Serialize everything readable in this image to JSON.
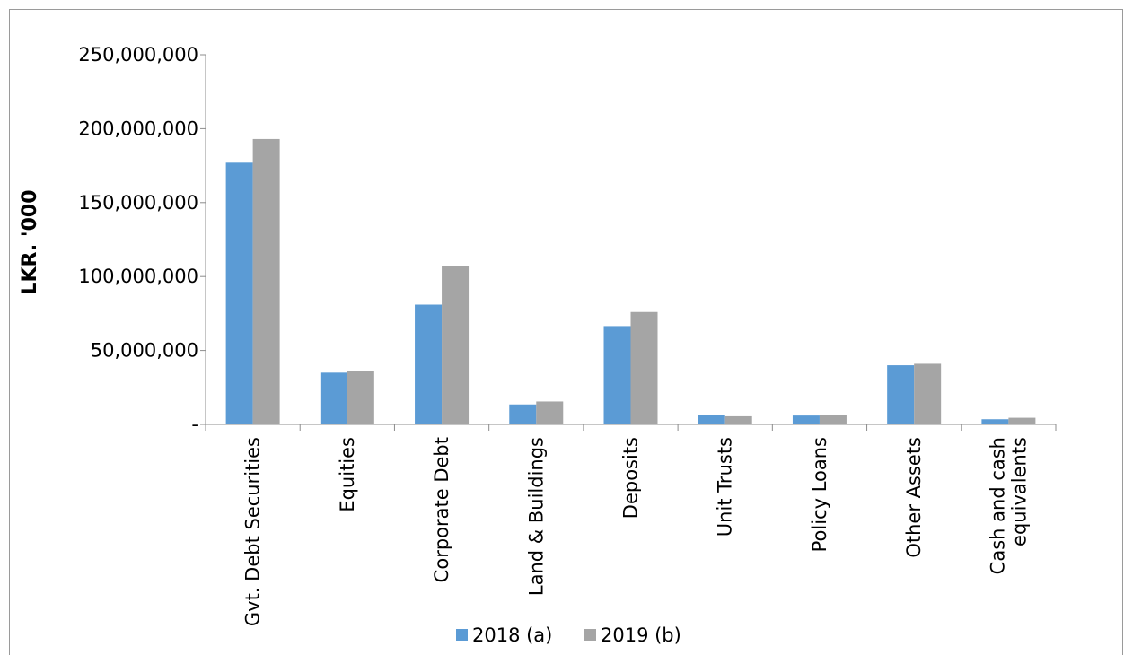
{
  "chart_data": {
    "type": "bar",
    "ylabel": "LKR. '000",
    "ylim": [
      0,
      250000000
    ],
    "yticks": [
      "-",
      "50,000,000",
      "100,000,000",
      "150,000,000",
      "200,000,000",
      "250,000,000"
    ],
    "categories": [
      [
        "Gvt. Debt Securities"
      ],
      [
        "Equities"
      ],
      [
        "Corporate Debt"
      ],
      [
        "Land & Buildings"
      ],
      [
        "Deposits"
      ],
      [
        "Unit Trusts"
      ],
      [
        "Policy Loans"
      ],
      [
        "Other Assets"
      ],
      [
        "Cash and cash",
        "equivalents"
      ]
    ],
    "series": [
      {
        "name": "2018 (a)",
        "color": "#5b9bd5",
        "values": [
          177000000,
          35000000,
          81000000,
          13500000,
          66500000,
          6500000,
          6000000,
          40000000,
          3500000
        ]
      },
      {
        "name": "2019 (b)",
        "color": "#a5a5a5",
        "values": [
          193000000,
          36000000,
          107000000,
          15500000,
          76000000,
          5500000,
          6500000,
          41000000,
          4500000
        ]
      }
    ],
    "legend_position": "bottom",
    "grid": false
  }
}
